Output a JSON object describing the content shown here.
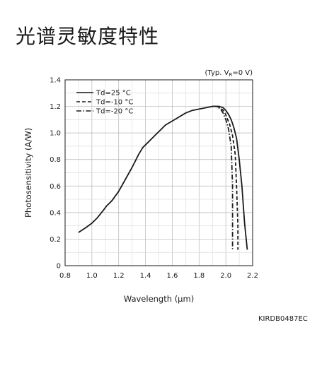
{
  "page": {
    "title": "光谱灵敏度特性",
    "figure_code": "KIRDB0487EC"
  },
  "chart_data": {
    "type": "line",
    "title": "",
    "condition_note": {
      "prefix": "(Typ. V",
      "subscript": "R",
      "suffix": "=0 V)"
    },
    "xlabel": "Wavelength (μm)",
    "ylabel": "Photosensitivity (A/W)",
    "xlim": [
      0.8,
      2.2
    ],
    "ylim": [
      0,
      1.4
    ],
    "xticks": [
      0.8,
      1.0,
      1.2,
      1.4,
      1.6,
      1.8,
      2.0,
      2.2
    ],
    "xtick_labels": [
      "0.8",
      "1.0",
      "1.2",
      "1.4",
      "1.6",
      "1.8",
      "2.0",
      "2.2"
    ],
    "yticks": [
      0,
      0.2,
      0.4,
      0.6,
      0.8,
      1.0,
      1.2,
      1.4
    ],
    "ytick_labels": [
      "0",
      "0.2",
      "0.4",
      "0.6",
      "0.8",
      "1.0",
      "1.2",
      "1.4"
    ],
    "grid": true,
    "legend_position": "top-left",
    "series": [
      {
        "name": "Td=25 °C",
        "dash": "solid",
        "x": [
          0.9,
          0.96,
          1.0,
          1.04,
          1.08,
          1.11,
          1.13,
          1.15,
          1.2,
          1.25,
          1.3,
          1.35,
          1.38,
          1.4,
          1.45,
          1.5,
          1.55,
          1.6,
          1.65,
          1.7,
          1.75,
          1.8,
          1.85,
          1.9,
          1.93,
          1.95,
          1.98,
          2.0,
          2.02,
          2.04,
          2.06,
          2.08,
          2.1,
          2.12,
          2.14,
          2.16
        ],
        "y": [
          0.25,
          0.29,
          0.32,
          0.36,
          0.41,
          0.45,
          0.47,
          0.49,
          0.56,
          0.65,
          0.74,
          0.84,
          0.89,
          0.91,
          0.96,
          1.01,
          1.06,
          1.09,
          1.12,
          1.15,
          1.17,
          1.18,
          1.19,
          1.2,
          1.2,
          1.2,
          1.19,
          1.17,
          1.14,
          1.1,
          1.04,
          0.96,
          0.8,
          0.6,
          0.32,
          0.12
        ]
      },
      {
        "name": "Td=-10 °C",
        "dash": "dashed",
        "x": [
          1.93,
          1.96,
          1.99,
          2.01,
          2.03,
          2.05,
          2.07,
          2.08,
          2.09,
          2.09
        ],
        "y": [
          1.2,
          1.19,
          1.16,
          1.11,
          1.06,
          0.98,
          0.84,
          0.6,
          0.3,
          0.12
        ]
      },
      {
        "name": "Td=-20 °C",
        "dash": "dashdot",
        "x": [
          1.9,
          1.93,
          1.96,
          1.98,
          2.0,
          2.02,
          2.04,
          2.05,
          2.05,
          2.05
        ],
        "y": [
          1.2,
          1.2,
          1.18,
          1.15,
          1.1,
          1.03,
          0.9,
          0.6,
          0.3,
          0.12
        ]
      }
    ]
  }
}
